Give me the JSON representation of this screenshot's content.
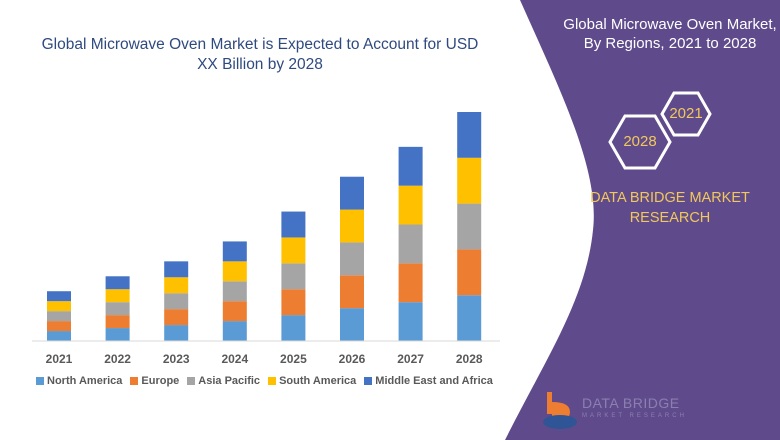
{
  "left_title": "Global Microwave Oven Market is Expected to Account for USD XX Billion by 2028",
  "right_panel": {
    "title": "Global Microwave Oven Market, By Regions, 2021 to 2028",
    "hex_start": "2021",
    "hex_end": "2028",
    "brand": "DATA BRIDGE MARKET RESEARCH",
    "logo_name": "DATA BRIDGE",
    "logo_tagline": "MARKET RESEARCH",
    "panel_color": "#5f4b8b",
    "accent_color": "#f2c75c"
  },
  "chart_data": {
    "type": "bar",
    "stacked": true,
    "title": "Global Microwave Oven Market is Expected to Account for USD XX Billion by 2028",
    "xlabel": "",
    "ylabel": "",
    "y_axis_shown": false,
    "grid": false,
    "legend_position": "bottom",
    "categories": [
      "2021",
      "2022",
      "2023",
      "2024",
      "2025",
      "2026",
      "2027",
      "2028"
    ],
    "series": [
      {
        "name": "North America",
        "color": "#5b9bd5",
        "values": [
          10,
          13,
          16,
          20,
          26,
          33,
          39,
          46
        ]
      },
      {
        "name": "Europe",
        "color": "#ed7d31",
        "values": [
          10,
          13,
          16,
          20,
          26,
          33,
          39,
          46
        ]
      },
      {
        "name": "Asia Pacific",
        "color": "#a5a5a5",
        "values": [
          10,
          13,
          16,
          20,
          26,
          33,
          39,
          46
        ]
      },
      {
        "name": "South America",
        "color": "#ffc000",
        "values": [
          10,
          13,
          16,
          20,
          26,
          33,
          39,
          46
        ]
      },
      {
        "name": "Middle East and Africa",
        "color": "#4472c4",
        "values": [
          10,
          13,
          16,
          20,
          26,
          33,
          39,
          46
        ]
      }
    ]
  }
}
